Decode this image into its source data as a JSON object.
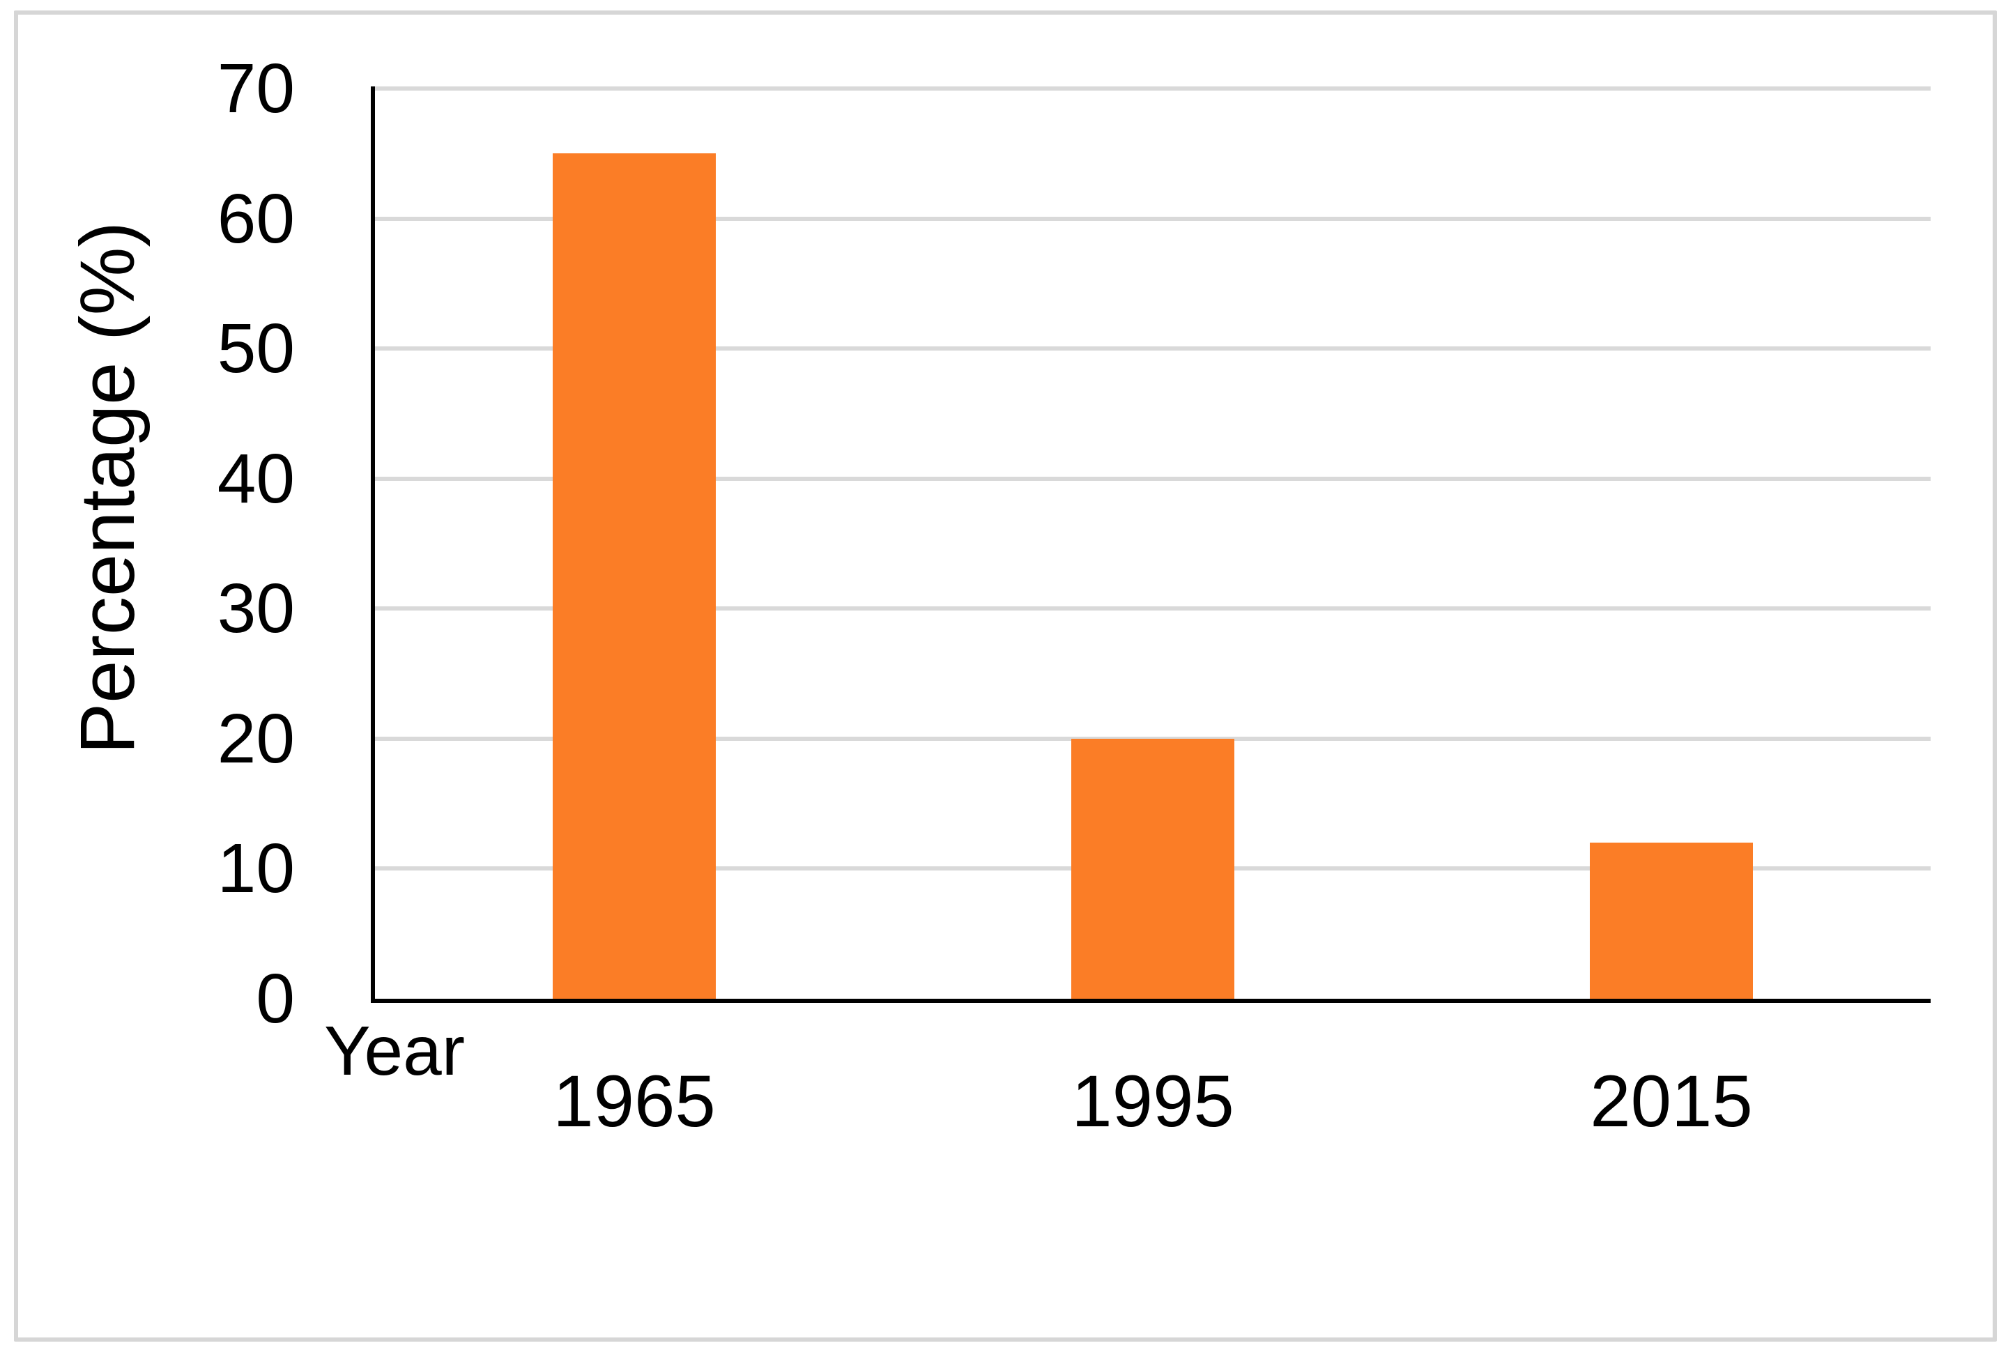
{
  "chart_data": {
    "type": "bar",
    "title": "",
    "categories": [
      "1965",
      "1995",
      "2015"
    ],
    "values": [
      65,
      20,
      12
    ],
    "xlabel": "Year",
    "ylabel": "Percentage (%)",
    "ylim": [
      0,
      70
    ],
    "yticks": [
      0,
      10,
      20,
      30,
      40,
      50,
      60,
      70
    ],
    "grid": true,
    "legend": false,
    "bar_color": "#FB7D26",
    "gridline_color": "#D9D9D9",
    "axis_color": "#000000",
    "border_color": "#D6D6D6",
    "text_color": "#000000"
  }
}
